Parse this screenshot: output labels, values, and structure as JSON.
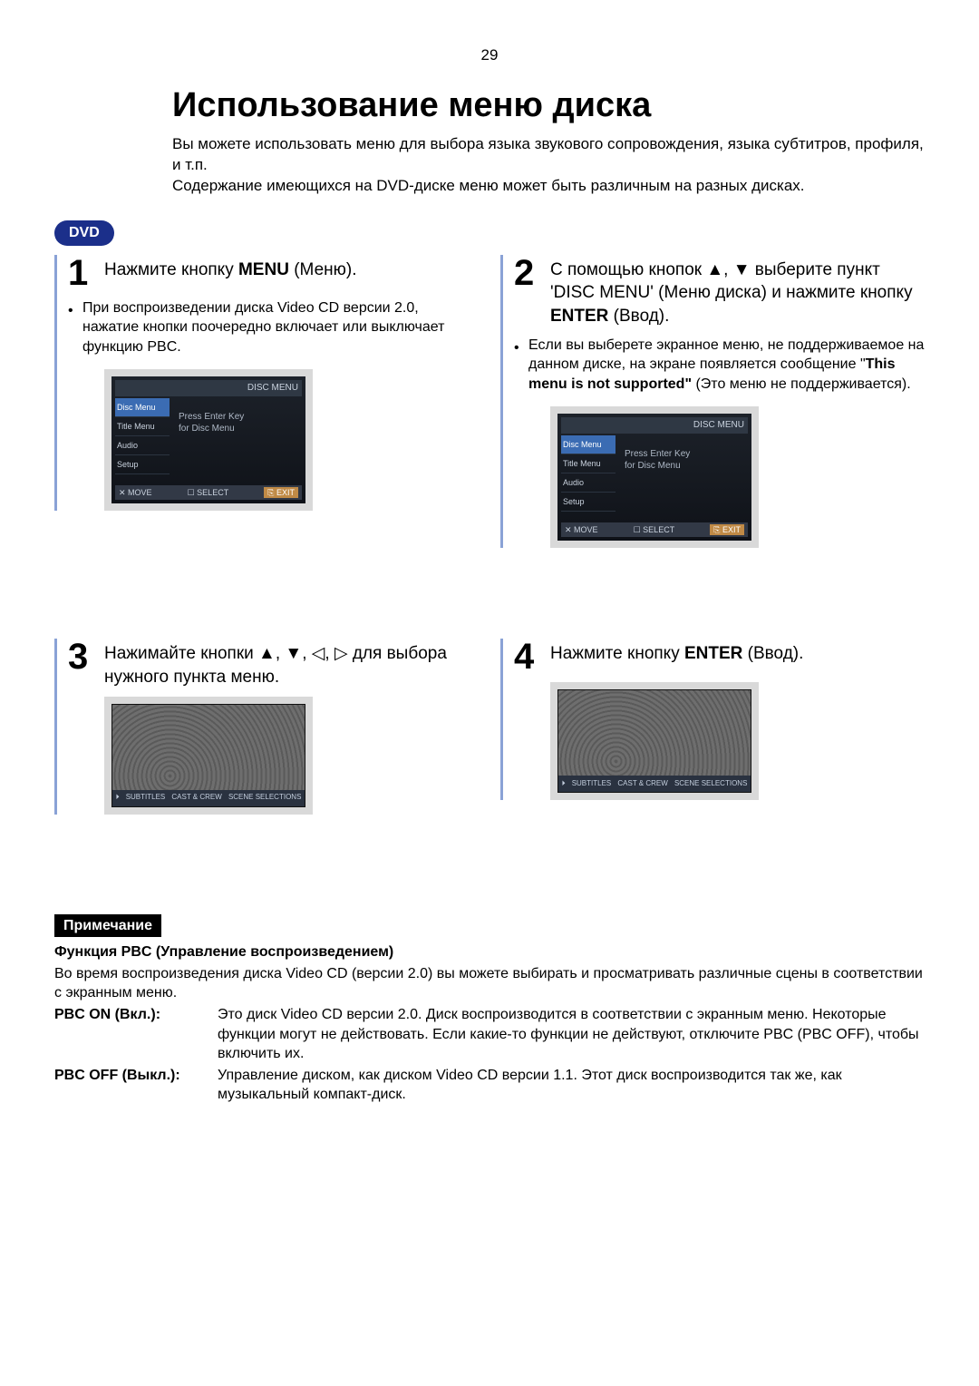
{
  "page_number": "29",
  "title": "Использование меню диска",
  "intro_line1": "Вы можете использовать меню для выбора языка звукового сопровождения, языка субтитров, профиля, и т.п.",
  "intro_line2": "Содержание имеющихся на DVD-диске меню может быть различным на разных дисках.",
  "dvd_badge": "DVD",
  "steps": {
    "s1": {
      "num": "1",
      "text_before": "Нажмите кнопку ",
      "bold": "MENU",
      "text_after": " (Меню).",
      "bullet": "При воспроизведении диска Video CD версии 2.0, нажатие кнопки поочередно включает или выключает функцию PBC."
    },
    "s2": {
      "num": "2",
      "text_before": "С помощью кнопок ▲, ▼ выберите пункт 'DISC MENU' (Меню диска) и нажмите кнопку ",
      "bold": "ENTER",
      "text_after": " (Ввод).",
      "bullet_before": "Если вы выберете экранное меню, не поддерживаемое на данном диске, на экране появляется сообщение \"",
      "bullet_bold": "This menu is not supported\"",
      "bullet_after": " (Это меню не поддерживается)."
    },
    "s3": {
      "num": "3",
      "text": "Нажимайте кнопки ▲, ▼, ◁, ▷ для выбора нужного пункта меню."
    },
    "s4": {
      "num": "4",
      "text_before": "Нажмите кнопку ",
      "bold": "ENTER",
      "text_after": " (Ввод)."
    }
  },
  "osd": {
    "header_right": "DISC MENU",
    "items": [
      "Disc Menu",
      "Title Menu",
      "Audio",
      "Setup"
    ],
    "msg1": "Press Enter Key",
    "msg2": "for Disc Menu",
    "foot_move": "✕ MOVE",
    "foot_sel": "☐ SELECT",
    "foot_exit": "⎘ EXIT"
  },
  "crowd_strip": [
    "⏵",
    "SUBTITLES",
    "CAST & CREW",
    "SCENE SELECTIONS"
  ],
  "note": {
    "label": "Примечание",
    "heading": "Функция PBC (Управление воспроизведением)",
    "body": "Во время воспроизведения диска Video CD (версии 2.0) вы можете выбирать и просматривать различные сцены в соответствии с экранным меню.",
    "on_label": "PBC ON (Вкл.):",
    "on_text": "Это диск Video CD версии 2.0. Диск воспроизводится в соответствии с экранным меню. Некоторые функции могут не действовать. Если какие-то функции не действуют, отключите PBC (PBC OFF), чтобы включить их.",
    "off_label": "PBC OFF (Выкл.):",
    "off_text": "Управление диском, как диском Video CD версии 1.1. Этот диск воспроизводится так же, как музыкальный компакт-диск."
  }
}
